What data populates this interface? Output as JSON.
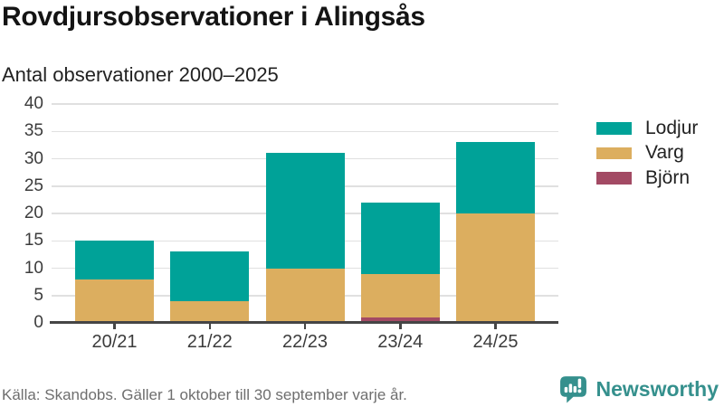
{
  "header": {
    "title": "Rovdjursobservationer i Alingsås",
    "subtitle": "Antal observationer 2000–2025"
  },
  "chart_data": {
    "type": "bar",
    "stacked": true,
    "title": "Rovdjursobservationer i Alingsås",
    "subtitle": "Antal observationer 2000–2025",
    "categories": [
      "20/21",
      "21/22",
      "22/23",
      "23/24",
      "24/25"
    ],
    "series": [
      {
        "name": "Lodjur",
        "color": "#00a298",
        "values": [
          7,
          9,
          21,
          13,
          13
        ]
      },
      {
        "name": "Varg",
        "color": "#dcae5f",
        "values": [
          8,
          4,
          10,
          8,
          20
        ]
      },
      {
        "name": "Björn",
        "color": "#a34a64",
        "values": [
          0,
          0,
          0,
          1,
          0
        ]
      }
    ],
    "totals": [
      15,
      13,
      31,
      22,
      33
    ],
    "xlabel": "",
    "ylabel": "",
    "ylim": [
      0,
      40
    ],
    "yticks": [
      0,
      5,
      10,
      15,
      20,
      25,
      30,
      35,
      40
    ],
    "grid": true,
    "legend_position": "right",
    "colors": {
      "gridline": "#e0e0e0",
      "axis": "#454545",
      "tick_label": "#3c3c3c"
    }
  },
  "footer": {
    "source": "Källa: Skandobs. Gäller 1 oktober till 30 september varje år."
  },
  "branding": {
    "name": "Newsworthy",
    "color": "#35908d",
    "icon": "bar-chart-speech-bubble-icon"
  }
}
